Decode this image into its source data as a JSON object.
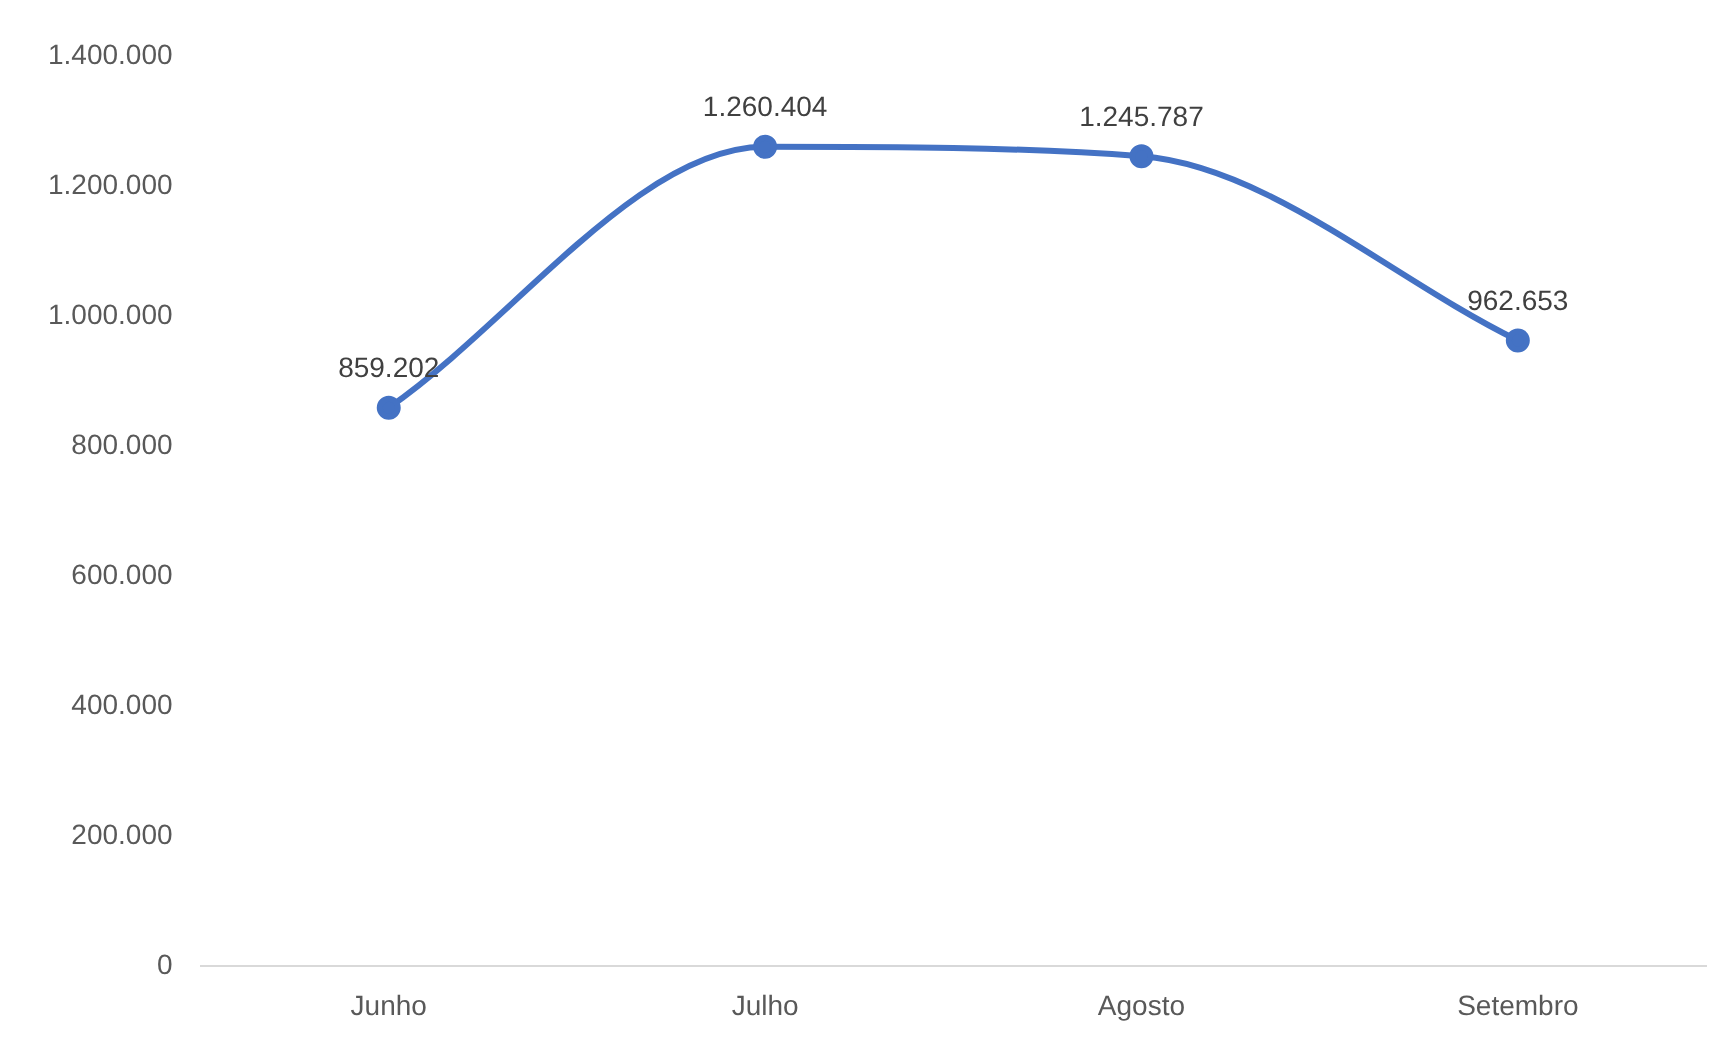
{
  "chart_data": {
    "type": "line",
    "categories": [
      "Junho",
      "Julho",
      "Agosto",
      "Setembro"
    ],
    "series": [
      {
        "color": "#4472c4",
        "values": [
          859202,
          1260404,
          1245787,
          962653
        ],
        "value_labels": [
          "859.202",
          "1.260.404",
          "1.245.787",
          "962.653"
        ]
      }
    ],
    "ylim": [
      0,
      1400000
    ],
    "yticks": [
      {
        "value": 0,
        "label": "0"
      },
      {
        "value": 200000,
        "label": "200.000"
      },
      {
        "value": 400000,
        "label": "400.000"
      },
      {
        "value": 600000,
        "label": "600.000"
      },
      {
        "value": 800000,
        "label": "800.000"
      },
      {
        "value": 1000000,
        "label": "1.000.000"
      },
      {
        "value": 1200000,
        "label": "1.200.000"
      },
      {
        "value": 1400000,
        "label": "1.400.000"
      }
    ],
    "grid": false,
    "legend": false,
    "marker": "circle",
    "line_style": "solid"
  }
}
